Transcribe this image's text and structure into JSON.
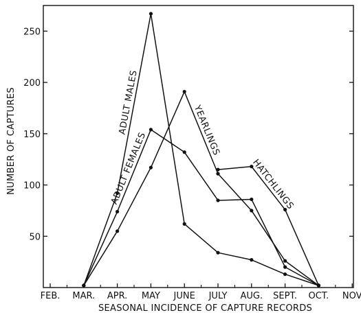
{
  "chart_data": {
    "type": "line",
    "title": "",
    "xlabel": "SEASONAL INCIDENCE OF CAPTURE RECORDS",
    "ylabel": "NUMBER OF CAPTURES",
    "categories": [
      "FEB.",
      "MAR.",
      "APR.",
      "MAY",
      "JUNE",
      "JULY",
      "AUG.",
      "SEPT.",
      "OCT.",
      "NOV"
    ],
    "ylim": [
      0,
      275
    ],
    "yticks": [
      50,
      100,
      150,
      200,
      250
    ],
    "grid": false,
    "legend": "none",
    "series": [
      {
        "name": "ADULT MALES",
        "points": [
          [
            "MAR.",
            2
          ],
          [
            "APR.",
            92
          ],
          [
            "MAY",
            267
          ],
          [
            "JUNE",
            62
          ],
          [
            "JULY",
            34
          ],
          [
            "AUG.",
            27
          ],
          [
            "SEPT.",
            13
          ],
          [
            "OCT.",
            2
          ]
        ]
      },
      {
        "name": "ADULT FEMALES",
        "points": [
          [
            "MAR.",
            2
          ],
          [
            "APR.",
            74
          ],
          [
            "MAY",
            154
          ],
          [
            "JUNE",
            132
          ],
          [
            "JULY",
            85
          ],
          [
            "AUG.",
            86
          ],
          [
            "SEPT.",
            20
          ],
          [
            "OCT.",
            2
          ]
        ]
      },
      {
        "name": "YEARLINGS",
        "points": [
          [
            "MAR.",
            2
          ],
          [
            "APR.",
            55
          ],
          [
            "MAY",
            117
          ],
          [
            "JUNE",
            191
          ],
          [
            "JULY",
            111
          ],
          [
            "AUG.",
            75
          ],
          [
            "SEPT.",
            26
          ],
          [
            "OCT.",
            2
          ]
        ]
      },
      {
        "name": "HATCHLINGS",
        "points": [
          [
            "JULY",
            115
          ],
          [
            "AUG.",
            118
          ],
          [
            "SEPT.",
            76
          ],
          [
            "OCT.",
            2
          ]
        ]
      }
    ]
  }
}
